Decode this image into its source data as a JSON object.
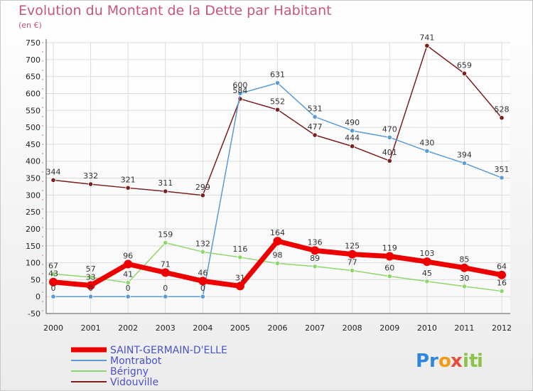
{
  "header": {
    "title": "Evolution du Montant de la Dette par Habitant",
    "unit": "(en €)"
  },
  "logo": {
    "text": "Proxiti",
    "letters": [
      "P",
      "r",
      "o",
      "x",
      "i",
      "t",
      "i"
    ],
    "colors": [
      "#2e86de",
      "#2e86de",
      "#f39c12",
      "#e74c3c",
      "#8bc34a",
      "#8bc34a",
      "#8bc34a"
    ]
  },
  "chart_data": {
    "type": "line",
    "title": "Evolution du Montant de la Dette par Habitant",
    "subtitle": "(en €)",
    "xlabel": "",
    "ylabel": "",
    "x": [
      2000,
      2001,
      2002,
      2003,
      2004,
      2005,
      2006,
      2007,
      2008,
      2009,
      2010,
      2011,
      2012
    ],
    "ylim": [
      -50,
      750
    ],
    "yticks": [
      -50,
      0,
      50,
      100,
      150,
      200,
      250,
      300,
      350,
      400,
      450,
      500,
      550,
      600,
      650,
      700,
      750
    ],
    "grid": true,
    "legend_position": "bottom-left",
    "series": [
      {
        "name": "Vidouville",
        "color": "#7b1f1f",
        "values": [
          344,
          332,
          321,
          311,
          299,
          584,
          552,
          477,
          444,
          401,
          741,
          659,
          528
        ]
      },
      {
        "name": "Montrabot",
        "color": "#5b9bd5",
        "values": [
          0,
          0,
          0,
          0,
          0,
          600,
          631,
          531,
          490,
          470,
          430,
          394,
          351
        ]
      },
      {
        "name": "Bérigny",
        "color": "#8ed66b",
        "values": [
          67,
          57,
          41,
          159,
          132,
          116,
          98,
          89,
          77,
          60,
          45,
          30,
          16
        ]
      },
      {
        "name": "SAINT-GERMAIN-D'ELLE",
        "color": "#ee0000",
        "values": [
          43,
          33,
          96,
          71,
          46,
          31,
          164,
          136,
          125,
          119,
          103,
          85,
          64
        ]
      }
    ]
  }
}
